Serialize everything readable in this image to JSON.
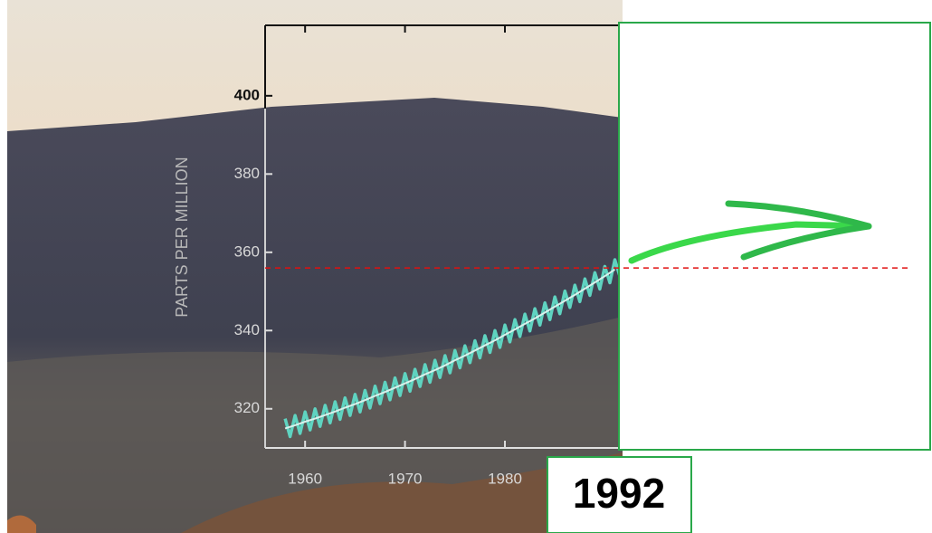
{
  "chart_data": {
    "type": "line",
    "y_label": "PARTS PER MILLION",
    "xlim": [
      1956,
      1991.5
    ],
    "xticks": [
      1960,
      1970,
      1980
    ],
    "ylim": [
      310,
      418
    ],
    "yticks": [
      320,
      340,
      360,
      380,
      400
    ],
    "series": [
      {
        "color": "#5fd3c0",
        "x": [
          1958,
          1958.5,
          1959,
          1959.5,
          1960,
          1960.5,
          1961,
          1961.5,
          1962,
          1962.5,
          1963,
          1963.5,
          1964,
          1964.5,
          1965,
          1965.5,
          1966,
          1966.5,
          1967,
          1967.5,
          1968,
          1968.5,
          1969,
          1969.5,
          1970,
          1970.5,
          1971,
          1971.5,
          1972,
          1972.5,
          1973,
          1973.5,
          1974,
          1974.5,
          1975,
          1975.5,
          1976,
          1976.5,
          1977,
          1977.5,
          1978,
          1978.5,
          1979,
          1979.5,
          1980,
          1980.5,
          1981,
          1981.5,
          1982,
          1982.5,
          1983,
          1983.5,
          1984,
          1984.5,
          1985,
          1985.5,
          1986,
          1986.5,
          1987,
          1987.5,
          1988,
          1988.5,
          1989,
          1989.5,
          1990,
          1990.5,
          1991,
          1991.5
        ],
        "values": [
          317.5,
          312.9,
          318.3,
          313.7,
          319.2,
          314.6,
          320.0,
          315.5,
          320.9,
          316.4,
          321.8,
          317.3,
          322.8,
          318.3,
          323.7,
          319.2,
          324.7,
          320.2,
          325.8,
          321.3,
          326.8,
          322.3,
          327.9,
          323.4,
          329.0,
          324.5,
          330.1,
          325.7,
          331.3,
          326.8,
          332.4,
          328.0,
          333.6,
          329.2,
          334.9,
          330.5,
          336.1,
          331.8,
          337.4,
          333.0,
          338.7,
          334.4,
          340.0,
          335.7,
          341.4,
          337.1,
          342.8,
          338.5,
          344.2,
          339.9,
          345.6,
          341.4,
          347.1,
          342.8,
          348.6,
          344.3,
          350.1,
          345.9,
          351.6,
          347.4,
          353.2,
          349.0,
          354.8,
          350.6,
          356.4,
          352.2,
          358.1,
          353.9
        ]
      },
      {
        "color": "#d8f2ec",
        "x": [
          1958,
          1959,
          1960,
          1961,
          1962,
          1963,
          1964,
          1965,
          1966,
          1967,
          1968,
          1969,
          1970,
          1971,
          1972,
          1973,
          1974,
          1975,
          1976,
          1977,
          1978,
          1979,
          1980,
          1981,
          1982,
          1983,
          1984,
          1985,
          1986,
          1987,
          1988,
          1989,
          1990,
          1991
        ],
        "values": [
          315.0,
          315.8,
          316.7,
          317.5,
          318.4,
          319.3,
          320.3,
          321.2,
          322.2,
          323.3,
          324.3,
          325.4,
          326.5,
          327.6,
          328.8,
          329.9,
          331.1,
          332.4,
          333.6,
          334.9,
          336.2,
          337.5,
          338.9,
          340.3,
          341.7,
          343.1,
          344.6,
          346.1,
          347.6,
          349.1,
          350.7,
          352.3,
          353.9,
          355.6
        ]
      }
    ],
    "reference_line": {
      "value": 356,
      "color": "#e01010"
    },
    "annotation": "1992"
  }
}
